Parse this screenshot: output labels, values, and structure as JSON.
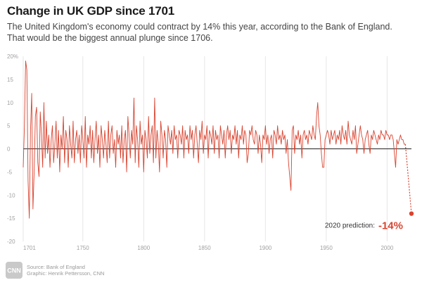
{
  "header": {
    "title": "Change in UK GDP since 1701",
    "subtitle_line1": "The United Kingdom's economy could contract by 14% this year, according to the Bank of England.",
    "subtitle_line2": "That would be the biggest annual plunge since 1706."
  },
  "footer": {
    "source": "Source: Bank of England",
    "graphic": "Graphic: Henrik Pettersson, CNN",
    "logo_text": "CNN"
  },
  "colors": {
    "line": "#d9432f",
    "zero_line": "#222222",
    "grid": "#e6e6e6",
    "tick_text": "#a0a0a0"
  },
  "chart_data": {
    "type": "line",
    "title": "Change in UK GDP since 1701",
    "xlabel": "",
    "ylabel": "",
    "xlim": [
      1701,
      2020
    ],
    "ylim": [
      -20,
      20
    ],
    "x_ticks": [
      1701,
      1750,
      1800,
      1850,
      1900,
      1950,
      2000
    ],
    "y_ticks": [
      {
        "value": 20,
        "label": "20%"
      },
      {
        "value": 15,
        "label": "15"
      },
      {
        "value": 10,
        "label": "10"
      },
      {
        "value": 5,
        "label": "5"
      },
      {
        "value": 0,
        "label": "0"
      },
      {
        "value": -5,
        "label": "-5"
      },
      {
        "value": -10,
        "label": "-10"
      },
      {
        "value": -15,
        "label": "-15"
      },
      {
        "value": -20,
        "label": "-20"
      }
    ],
    "grid": "vertical",
    "series": [
      {
        "x_start": 1701,
        "values": [
          -4,
          5,
          19,
          17,
          -7,
          -15,
          4,
          12,
          -13,
          -5,
          7,
          9,
          -3,
          -6,
          8,
          3,
          -4,
          10,
          -2,
          6,
          -1,
          3,
          -4,
          2,
          5,
          -3,
          1,
          6,
          -2,
          4,
          -5,
          3,
          0,
          7,
          -3,
          4,
          2,
          -4,
          5,
          1,
          -2,
          6,
          -3,
          2,
          4,
          -1,
          3,
          -3,
          5,
          2,
          -2,
          7,
          -4,
          3,
          1,
          5,
          -2,
          4,
          -3,
          2,
          6,
          -1,
          3,
          -4,
          5,
          2,
          -2,
          4,
          1,
          -3,
          6,
          -2,
          3,
          5,
          -1,
          2,
          -4,
          4,
          1,
          3,
          -2,
          5,
          -3,
          2,
          4,
          -5,
          7,
          3,
          -2,
          4,
          1,
          11,
          -3,
          5,
          2,
          -4,
          6,
          1,
          3,
          -5,
          4,
          2,
          -2,
          7,
          -1,
          3,
          5,
          -3,
          11,
          -2,
          4,
          1,
          -5,
          6,
          3,
          -2,
          4,
          2,
          -4,
          5,
          3,
          1,
          4,
          -1,
          5,
          2,
          3,
          -2,
          4,
          3,
          1,
          5,
          -2,
          4,
          2,
          3,
          -1,
          5,
          2,
          4,
          -2,
          3,
          5,
          1,
          -3,
          4,
          2,
          6,
          -1,
          3,
          2,
          5,
          -2,
          4,
          3,
          1,
          5,
          -1,
          4,
          2,
          3,
          -2,
          5,
          3,
          1,
          4,
          -2,
          3,
          5,
          2,
          4,
          -1,
          3,
          2,
          5,
          1,
          4,
          -2,
          3,
          2,
          5,
          1,
          4,
          3,
          -3,
          -1,
          4,
          3,
          5,
          2,
          1,
          4,
          3,
          -1,
          3,
          1,
          -3,
          3,
          2,
          5,
          1,
          3,
          -1,
          2,
          3,
          -2,
          4,
          3,
          1,
          5,
          2,
          3,
          1,
          4,
          2,
          3,
          -1,
          2,
          -3,
          -6,
          -9,
          4,
          5,
          -1,
          3,
          2,
          4,
          1,
          3,
          -2,
          3,
          4,
          2,
          3,
          1,
          4,
          3,
          2,
          5,
          3,
          2,
          7,
          10,
          5,
          3,
          -1,
          -4,
          -4,
          2,
          3,
          4,
          3,
          1,
          4,
          2,
          3,
          4,
          1,
          3,
          2,
          4,
          1,
          5,
          3,
          2,
          4,
          1,
          6,
          3,
          2,
          1,
          4,
          2,
          5,
          -1,
          1,
          3,
          5,
          3,
          2,
          -1,
          2,
          3,
          4,
          1,
          -1,
          3,
          2,
          4,
          3,
          2,
          1,
          3,
          2,
          4,
          3,
          3,
          2,
          4,
          3,
          3,
          2,
          3,
          3,
          2,
          -1,
          -4,
          2,
          1,
          2,
          3,
          2,
          2,
          1,
          1
        ]
      }
    ],
    "annotations": [
      {
        "x": 2020,
        "y": -14,
        "label": "2020 prediction:",
        "value_label": "-14%"
      }
    ]
  }
}
